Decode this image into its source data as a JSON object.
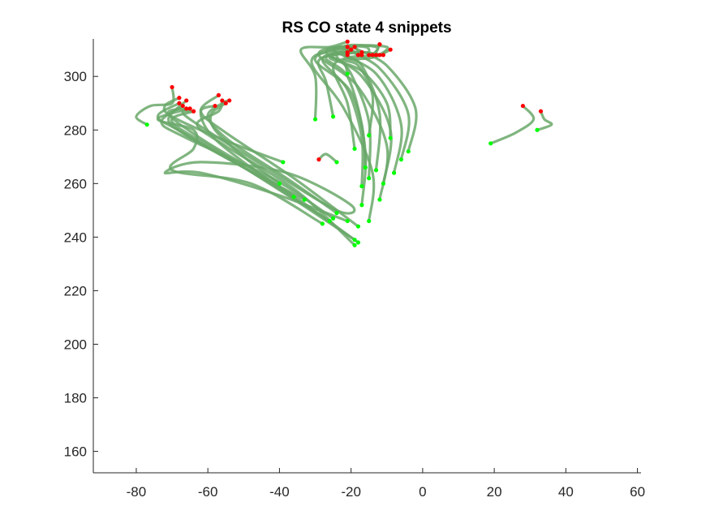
{
  "chart_data": {
    "type": "line",
    "title": "RS  CO state 4 snippets",
    "xlabel": "",
    "ylabel": "",
    "xlim": [
      -92,
      61
    ],
    "ylim": [
      152,
      314
    ],
    "xticks": [
      -80,
      -60,
      -40,
      -20,
      0,
      20,
      40,
      60
    ],
    "yticks": [
      160,
      180,
      200,
      220,
      240,
      260,
      280,
      300
    ],
    "xtick_labels": [
      "-80",
      "-60",
      "-40",
      "-20",
      "0",
      "20",
      "40",
      "60"
    ],
    "ytick_labels": [
      "160",
      "180",
      "200",
      "220",
      "240",
      "260",
      "280",
      "300"
    ],
    "grid": false,
    "colors": {
      "line": "#6aa86a",
      "start": "#00ff00",
      "end": "#ff0000"
    },
    "series": [
      {
        "points": [
          [
            -77,
            282
          ],
          [
            -80,
            285
          ],
          [
            -76,
            289
          ],
          [
            -70,
            290
          ],
          [
            -70,
            296
          ]
        ]
      },
      {
        "points": [
          [
            -39,
            268
          ],
          [
            -55,
            276
          ],
          [
            -70,
            285
          ],
          [
            -72,
            289
          ],
          [
            -68,
            292
          ]
        ]
      },
      {
        "points": [
          [
            -26,
            246
          ],
          [
            -45,
            262
          ],
          [
            -67,
            279
          ],
          [
            -74,
            285
          ],
          [
            -68,
            290
          ]
        ]
      },
      {
        "points": [
          [
            -25,
            247
          ],
          [
            -42,
            262
          ],
          [
            -66,
            277
          ],
          [
            -73,
            283
          ],
          [
            -67,
            289
          ]
        ]
      },
      {
        "points": [
          [
            -33,
            254
          ],
          [
            -50,
            266
          ],
          [
            -66,
            278
          ],
          [
            -71,
            284
          ],
          [
            -66,
            291
          ]
        ]
      },
      {
        "points": [
          [
            -28,
            245
          ],
          [
            -48,
            260
          ],
          [
            -70,
            265
          ],
          [
            -64,
            273
          ],
          [
            -64,
            280
          ],
          [
            -74,
            284
          ],
          [
            -65,
            288
          ]
        ]
      },
      {
        "points": [
          [
            -21,
            246
          ],
          [
            -41,
            256
          ],
          [
            -62,
            264
          ],
          [
            -72,
            264
          ],
          [
            -62,
            268
          ],
          [
            -38,
            264
          ],
          [
            -20,
            252
          ],
          [
            -24,
            250
          ],
          [
            -45,
            267
          ],
          [
            -66,
            285
          ],
          [
            -64,
            287
          ]
        ]
      },
      {
        "points": [
          [
            -19,
            239
          ],
          [
            -37,
            255
          ],
          [
            -57,
            272
          ],
          [
            -70,
            283
          ],
          [
            -64,
            287
          ]
        ]
      },
      {
        "points": [
          [
            -18,
            238
          ],
          [
            -40,
            259
          ],
          [
            -61,
            276
          ],
          [
            -71,
            286
          ],
          [
            -66,
            288
          ]
        ]
      },
      {
        "points": [
          [
            -19,
            237
          ],
          [
            -35,
            257
          ],
          [
            -55,
            274
          ],
          [
            -63,
            282
          ],
          [
            -57,
            287
          ],
          [
            -56,
            291
          ]
        ]
      },
      {
        "points": [
          [
            -18,
            244
          ],
          [
            -36,
            262
          ],
          [
            -55,
            279
          ],
          [
            -62,
            287
          ],
          [
            -57,
            293
          ]
        ]
      },
      {
        "points": [
          [
            -24,
            249
          ],
          [
            -38,
            262
          ],
          [
            -54,
            276
          ],
          [
            -60,
            285
          ],
          [
            -56,
            290
          ],
          [
            -54,
            291
          ]
        ]
      },
      {
        "points": [
          [
            -36,
            255
          ],
          [
            -48,
            266
          ],
          [
            -59,
            278
          ],
          [
            -62,
            287
          ],
          [
            -58,
            289
          ]
        ]
      },
      {
        "points": [
          [
            -40,
            260
          ],
          [
            -50,
            270
          ],
          [
            -58,
            280
          ],
          [
            -59,
            286
          ],
          [
            -55,
            290
          ]
        ]
      },
      {
        "points": [
          [
            -24,
            268
          ],
          [
            -27,
            271
          ],
          [
            -29,
            269
          ]
        ]
      },
      {
        "points": [
          [
            -30,
            284
          ],
          [
            -30,
            300
          ],
          [
            -34,
            310
          ],
          [
            -26,
            311
          ],
          [
            -21,
            313
          ]
        ]
      },
      {
        "points": [
          [
            -25,
            285
          ],
          [
            -27,
            298
          ],
          [
            -29,
            306
          ],
          [
            -22,
            309
          ],
          [
            -20,
            310
          ]
        ]
      },
      {
        "points": [
          [
            -17,
            252
          ],
          [
            -16,
            272
          ],
          [
            -20,
            294
          ],
          [
            -30,
            306
          ],
          [
            -24,
            310
          ],
          [
            -19,
            311
          ]
        ]
      },
      {
        "points": [
          [
            -15,
            246
          ],
          [
            -14,
            264
          ],
          [
            -22,
            288
          ],
          [
            -31,
            305
          ],
          [
            -25,
            310
          ],
          [
            -20,
            310
          ]
        ]
      },
      {
        "points": [
          [
            -12,
            254
          ],
          [
            -10,
            274
          ],
          [
            -18,
            296
          ],
          [
            -29,
            308
          ],
          [
            -22,
            311
          ],
          [
            -18,
            308
          ]
        ]
      },
      {
        "points": [
          [
            -11,
            260
          ],
          [
            -9,
            280
          ],
          [
            -17,
            300
          ],
          [
            -27,
            309
          ],
          [
            -20,
            311
          ],
          [
            -17,
            308
          ]
        ]
      },
      {
        "points": [
          [
            -8,
            264
          ],
          [
            -6,
            282
          ],
          [
            -13,
            301
          ],
          [
            -25,
            310
          ],
          [
            -16,
            311
          ],
          [
            -15,
            308
          ]
        ]
      },
      {
        "points": [
          [
            -6,
            269
          ],
          [
            -4,
            286
          ],
          [
            -12,
            303
          ],
          [
            -22,
            311
          ],
          [
            -13,
            311
          ],
          [
            -14,
            308
          ]
        ]
      },
      {
        "points": [
          [
            -4,
            272
          ],
          [
            -2,
            288
          ],
          [
            -10,
            304
          ],
          [
            -19,
            311
          ],
          [
            -10,
            311
          ],
          [
            -12,
            308
          ]
        ]
      },
      {
        "points": [
          [
            -15,
            278
          ],
          [
            -14,
            293
          ],
          [
            -18,
            304
          ],
          [
            -22,
            306
          ],
          [
            -14,
            307
          ],
          [
            -9,
            310
          ]
        ]
      },
      {
        "points": [
          [
            -19,
            273
          ],
          [
            -21,
            290
          ],
          [
            -25,
            303
          ],
          [
            -21,
            307
          ],
          [
            -14,
            308
          ],
          [
            -12,
            312
          ]
        ]
      },
      {
        "points": [
          [
            -13,
            265
          ],
          [
            -12,
            286
          ],
          [
            -17,
            304
          ],
          [
            -22,
            308
          ],
          [
            -16,
            309
          ],
          [
            -13,
            308
          ]
        ]
      },
      {
        "points": [
          [
            -15,
            262
          ],
          [
            -15,
            283
          ],
          [
            -20,
            301
          ],
          [
            -24,
            308
          ],
          [
            -17,
            309
          ]
        ]
      },
      {
        "points": [
          [
            -9,
            277
          ],
          [
            -10,
            290
          ],
          [
            -17,
            302
          ],
          [
            -26,
            307
          ],
          [
            -18,
            309
          ],
          [
            -11,
            308
          ]
        ]
      },
      {
        "points": [
          [
            -16,
            266
          ],
          [
            -17,
            282
          ],
          [
            -21,
            300
          ],
          [
            -27,
            307
          ],
          [
            -19,
            309
          ],
          [
            -21,
            309
          ]
        ]
      },
      {
        "points": [
          [
            -21,
            301
          ],
          [
            -22,
            305
          ],
          [
            -26,
            308
          ],
          [
            -21,
            310
          ],
          [
            -21,
            311
          ]
        ]
      },
      {
        "points": [
          [
            -17,
            259
          ],
          [
            -17,
            277
          ],
          [
            -21,
            295
          ],
          [
            -28,
            306
          ],
          [
            -23,
            309
          ],
          [
            -21,
            308
          ]
        ]
      },
      {
        "points": [
          [
            19,
            275
          ],
          [
            26,
            279
          ],
          [
            31,
            284
          ],
          [
            28,
            289
          ]
        ]
      },
      {
        "points": [
          [
            32,
            280
          ],
          [
            36,
            282
          ],
          [
            34,
            284
          ],
          [
            33,
            287
          ]
        ]
      }
    ]
  }
}
